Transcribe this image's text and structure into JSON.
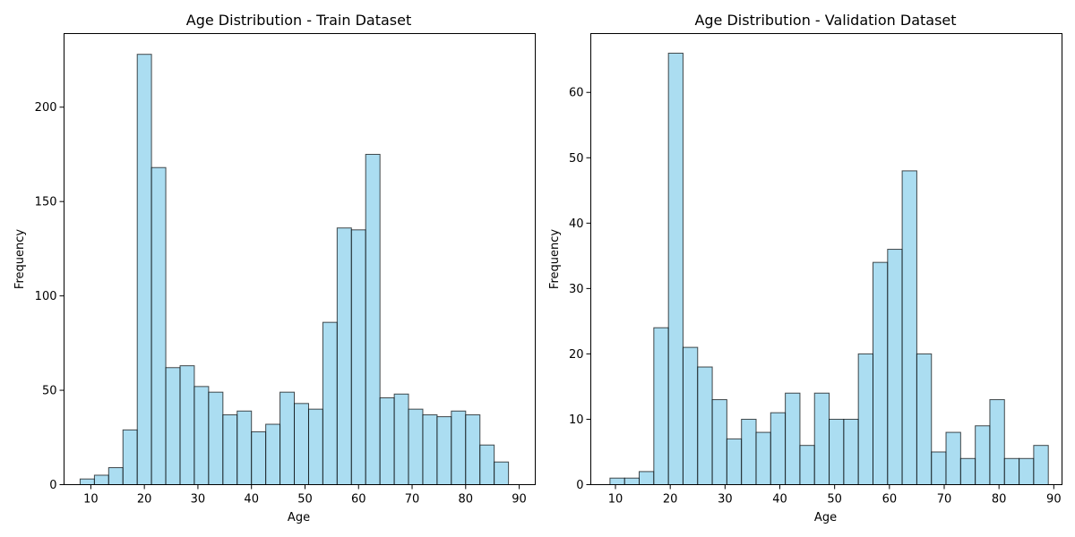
{
  "chart_data": [
    {
      "type": "bar",
      "title": "Age Distribution - Train Dataset",
      "xlabel": "Age",
      "ylabel": "Frequency",
      "xlim": [
        5,
        93
      ],
      "ylim": [
        0,
        239
      ],
      "xticks": [
        10,
        20,
        30,
        40,
        50,
        60,
        70,
        80,
        90
      ],
      "yticks": [
        0,
        50,
        100,
        150,
        200
      ],
      "bin_edges": [
        8,
        10.67,
        13.33,
        16,
        18.67,
        21.33,
        24,
        26.67,
        29.33,
        32,
        34.67,
        37.33,
        40,
        42.67,
        45.33,
        48,
        50.67,
        53.33,
        56,
        58.67,
        61.33,
        64,
        66.67,
        69.33,
        72,
        74.67,
        77.33,
        80,
        82.67,
        85.33,
        88
      ],
      "values": [
        3,
        5,
        9,
        29,
        228,
        168,
        62,
        63,
        52,
        49,
        37,
        39,
        28,
        32,
        49,
        43,
        40,
        86,
        136,
        135,
        175,
        46,
        48,
        40,
        37,
        36,
        39,
        37,
        21,
        12
      ],
      "grid": false,
      "colors": {
        "bar_fill": "#87ceeb",
        "bar_edge": "#000000"
      }
    },
    {
      "type": "bar",
      "title": "Age Distribution - Validation Dataset",
      "xlabel": "Age",
      "ylabel": "Frequency",
      "xlim": [
        5.5,
        91.5
      ],
      "ylim": [
        0,
        69
      ],
      "xticks": [
        10,
        20,
        30,
        40,
        50,
        60,
        70,
        80,
        90
      ],
      "yticks": [
        0,
        10,
        20,
        30,
        40,
        50,
        60
      ],
      "bin_edges": [
        9,
        11.67,
        14.33,
        17,
        19.67,
        22.33,
        25,
        27.67,
        30.33,
        33,
        35.67,
        38.33,
        41,
        43.67,
        46.33,
        49,
        51.67,
        54.33,
        57,
        59.67,
        62.33,
        65,
        67.67,
        70.33,
        73,
        75.67,
        78.33,
        81,
        83.67,
        86.33,
        89
      ],
      "values": [
        1,
        1,
        2,
        24,
        66,
        21,
        18,
        13,
        7,
        10,
        8,
        11,
        14,
        6,
        14,
        10,
        10,
        20,
        34,
        36,
        48,
        20,
        5,
        8,
        4,
        9,
        13,
        4,
        4,
        6
      ],
      "grid": false,
      "colors": {
        "bar_fill": "#87ceeb",
        "bar_edge": "#000000"
      }
    }
  ]
}
